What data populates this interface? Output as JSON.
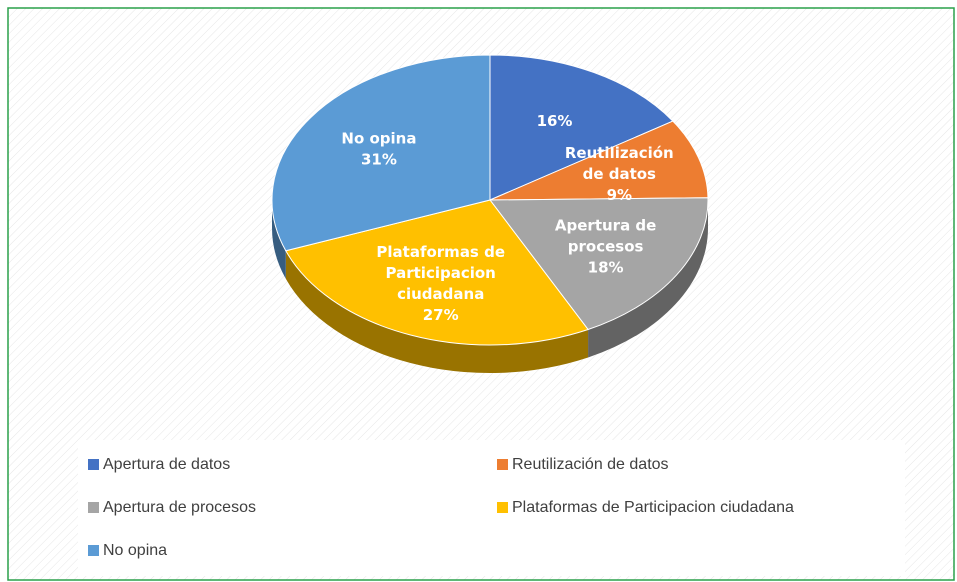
{
  "chart_data": {
    "type": "pie3d",
    "categories": [
      "Apertura de datos",
      "Reutilización de datos",
      "Apertura de procesos",
      "Plataformas de Participacion ciudadana",
      "No opina"
    ],
    "values": [
      16,
      9,
      18,
      27,
      31
    ],
    "value_labels": [
      "16%",
      "9%",
      "18%",
      "27%",
      "31%"
    ],
    "colors": [
      "#4472c4",
      "#ed7d31",
      "#a5a5a5",
      "#ffc000",
      "#5b9bd5"
    ],
    "show_category_in_label": [
      false,
      true,
      true,
      true,
      true
    ],
    "legend": "bottom"
  }
}
